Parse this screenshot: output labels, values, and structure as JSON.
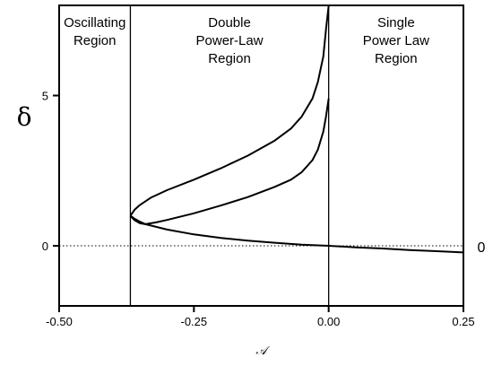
{
  "chart_data": {
    "type": "line",
    "title": "",
    "xlabel": "𝒜",
    "ylabel": "δ",
    "xlim": [
      -0.5,
      0.25
    ],
    "ylim": [
      -2.0,
      8.0
    ],
    "x_ticks": [
      -0.5,
      -0.25,
      0.0,
      0.25
    ],
    "x_tick_labels": [
      "-0.50",
      "-0.25",
      "0.00",
      "0.25"
    ],
    "y_ticks": [
      0,
      5
    ],
    "y_tick_labels": [
      "0",
      "5"
    ],
    "zero_line_label": "0",
    "region_boundaries_x": [
      -0.3679,
      0.0
    ],
    "regions": [
      {
        "name": "oscillating",
        "label_lines": [
          "Oscillating",
          "Region"
        ]
      },
      {
        "name": "double-power-law",
        "label_lines": [
          "Double",
          "Power-Law",
          "Region"
        ]
      },
      {
        "name": "single-power-law",
        "label_lines": [
          "Single",
          "Power Law",
          "Region"
        ]
      }
    ],
    "series": [
      {
        "values_xy": [
          [
            -0.3679,
            1.0
          ],
          [
            -0.36,
            1.2
          ],
          [
            -0.35,
            1.36
          ],
          [
            -0.33,
            1.6
          ],
          [
            -0.3,
            1.85
          ],
          [
            -0.25,
            2.2
          ],
          [
            -0.2,
            2.58
          ],
          [
            -0.15,
            3.0
          ],
          [
            -0.1,
            3.5
          ],
          [
            -0.07,
            3.9
          ],
          [
            -0.05,
            4.3
          ],
          [
            -0.03,
            4.9
          ],
          [
            -0.02,
            5.45
          ],
          [
            -0.01,
            6.3
          ],
          [
            -0.005,
            7.2
          ],
          [
            0.0,
            8.0
          ]
        ]
      },
      {
        "values_xy": [
          [
            -0.3679,
            1.0
          ],
          [
            -0.36,
            0.85
          ],
          [
            -0.35,
            0.75
          ],
          [
            -0.34,
            0.72
          ],
          [
            -0.32,
            0.78
          ],
          [
            -0.3,
            0.86
          ],
          [
            -0.25,
            1.08
          ],
          [
            -0.2,
            1.34
          ],
          [
            -0.15,
            1.62
          ],
          [
            -0.1,
            1.96
          ],
          [
            -0.07,
            2.2
          ],
          [
            -0.05,
            2.45
          ],
          [
            -0.03,
            2.85
          ],
          [
            -0.02,
            3.2
          ],
          [
            -0.01,
            3.8
          ],
          [
            -0.005,
            4.3
          ],
          [
            0.0,
            4.9
          ]
        ]
      },
      {
        "values_xy": [
          [
            -0.3679,
            1.0
          ],
          [
            -0.36,
            0.9
          ],
          [
            -0.35,
            0.8
          ],
          [
            -0.34,
            0.72
          ],
          [
            -0.32,
            0.63
          ],
          [
            -0.3,
            0.54
          ],
          [
            -0.25,
            0.38
          ],
          [
            -0.2,
            0.26
          ],
          [
            -0.15,
            0.17
          ],
          [
            -0.1,
            0.1
          ],
          [
            -0.05,
            0.04
          ],
          [
            0.0,
            0.0
          ],
          [
            0.05,
            -0.05
          ],
          [
            0.1,
            -0.09
          ],
          [
            0.15,
            -0.14
          ],
          [
            0.2,
            -0.18
          ],
          [
            0.25,
            -0.22
          ]
        ]
      }
    ],
    "grid": false,
    "legend": "none"
  }
}
